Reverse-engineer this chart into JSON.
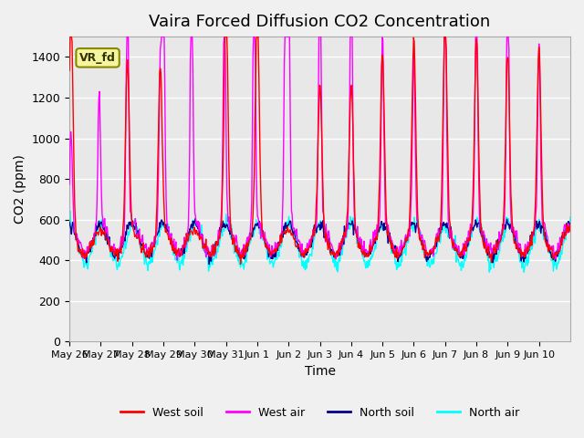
{
  "title": "Vaira Forced Diffusion CO2 Concentration",
  "xlabel": "Time",
  "ylabel": "CO2 (ppm)",
  "ylim": [
    0,
    1500
  ],
  "yticks": [
    0,
    200,
    400,
    600,
    800,
    1000,
    1200,
    1400
  ],
  "xtick_labels": [
    "May 26",
    "May 27",
    "May 28",
    "May 29",
    "May 30",
    "May 31",
    "Jun 1",
    "Jun 2",
    "Jun 3",
    "Jun 4",
    "Jun 5",
    "Jun 6",
    "Jun 7",
    "Jun 8",
    "Jun 9",
    "Jun 10"
  ],
  "colors": {
    "west_soil": "#ff0000",
    "west_air": "#ff00ff",
    "north_soil": "#00008b",
    "north_air": "#00ffff"
  },
  "legend_label": "VR_fd",
  "legend_box_color": "#f5f5a0",
  "legend_box_edge": "#888800",
  "background_color": "#e8e8e8",
  "grid_color": "#ffffff",
  "title_fontsize": 13,
  "label_fontsize": 10
}
